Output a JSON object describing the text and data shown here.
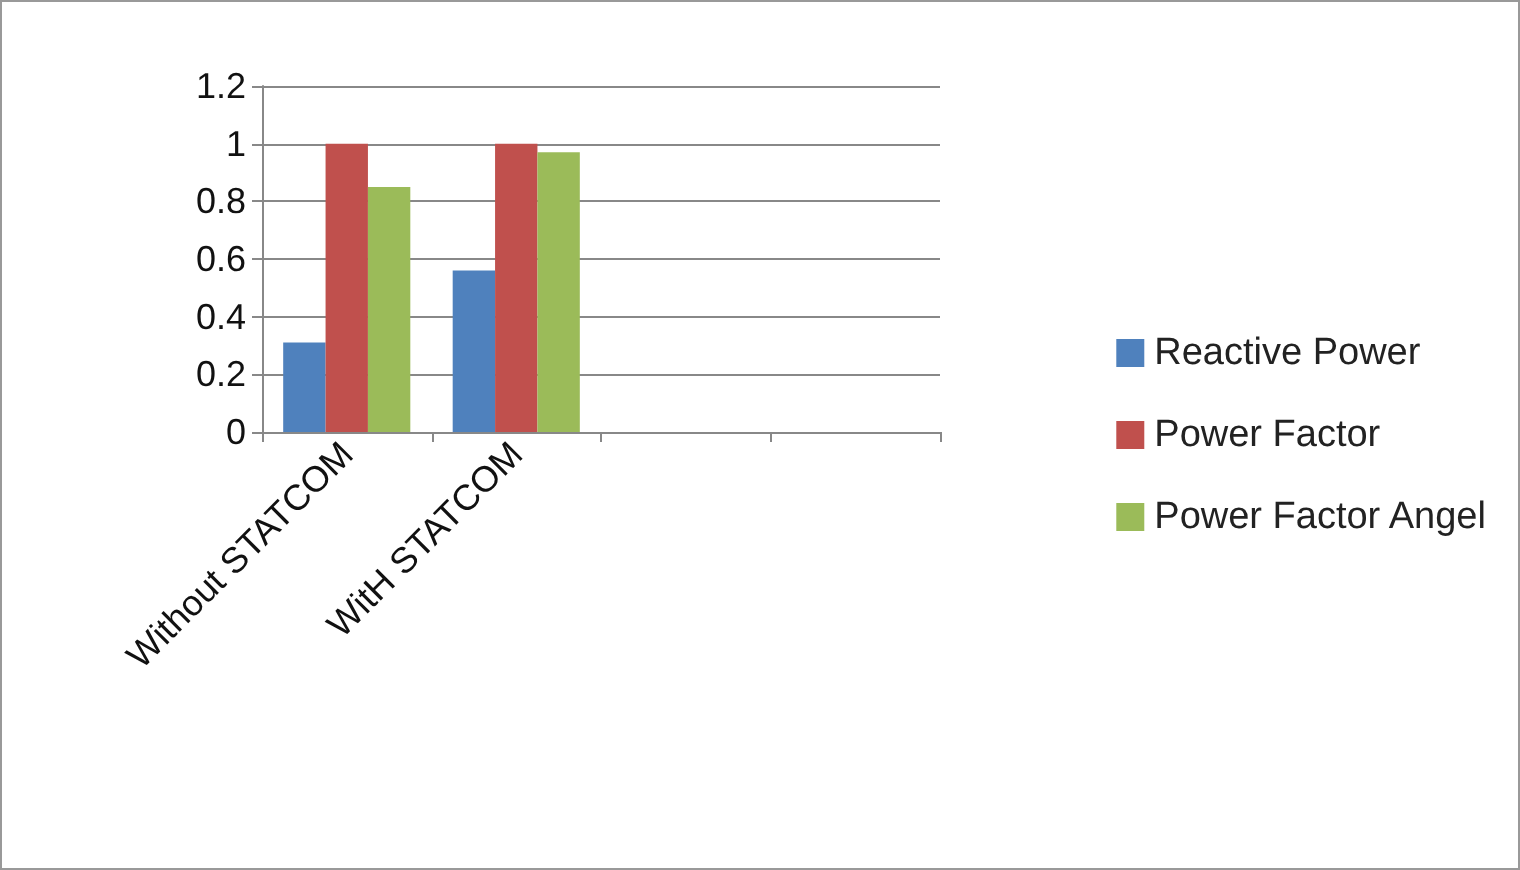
{
  "chart_data": {
    "type": "bar",
    "categories": [
      "Without STATCOM",
      "WitH STATCOM",
      null,
      null
    ],
    "series": [
      {
        "name": "Reactive Power",
        "color": "#4f81bd",
        "values": [
          0.31,
          0.56,
          null,
          null
        ]
      },
      {
        "name": "Power Factor",
        "color": "#c0504d",
        "values": [
          1.0,
          1.0,
          null,
          null
        ]
      },
      {
        "name": "Power Factor Angel",
        "color": "#9bbb59",
        "values": [
          0.85,
          0.97,
          null,
          null
        ]
      }
    ],
    "ylim": [
      0,
      1.2
    ],
    "yticks": [
      0,
      0.2,
      0.4,
      0.6,
      0.8,
      1,
      1.2
    ],
    "grid": "y",
    "legend": "right"
  }
}
